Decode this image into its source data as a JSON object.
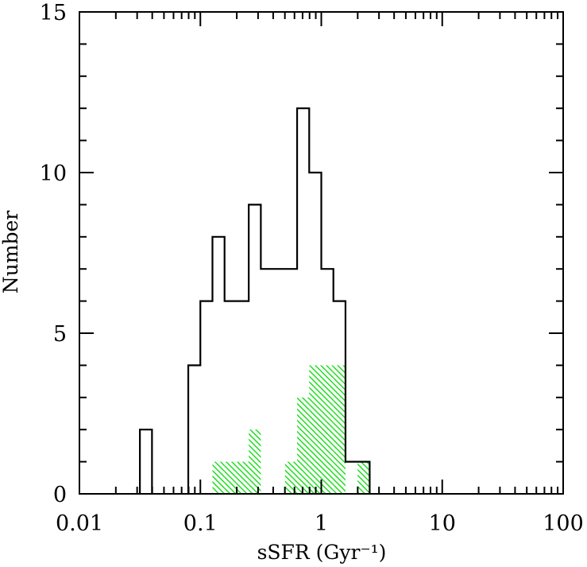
{
  "chart_data": {
    "type": "histogram",
    "xscale": "log",
    "xlabel": "sSFR (Gyr⁻¹)",
    "ylabel": "Number",
    "xlim": [
      0.01,
      100
    ],
    "ylim": [
      0,
      15
    ],
    "xticks": [
      {
        "value": 0.01,
        "label": "0.01"
      },
      {
        "value": 0.1,
        "label": "0.1"
      },
      {
        "value": 1,
        "label": "1"
      },
      {
        "value": 10,
        "label": "10"
      },
      {
        "value": 100,
        "label": "100"
      }
    ],
    "yticks": [
      {
        "value": 0,
        "label": "0"
      },
      {
        "value": 5,
        "label": "5"
      },
      {
        "value": 10,
        "label": "10"
      },
      {
        "value": 15,
        "label": "15"
      }
    ],
    "bin_edges_log10": [
      -1.6,
      -1.5,
      -1.4,
      -1.3,
      -1.2,
      -1.1,
      -1.0,
      -0.9,
      -0.8,
      -0.7,
      -0.6,
      -0.5,
      -0.4,
      -0.3,
      -0.2,
      -0.1,
      0.0,
      0.1,
      0.2,
      0.3,
      0.4,
      0.5,
      0.6,
      0.7,
      0.8,
      0.9,
      1.0,
      1.1,
      1.2,
      1.3,
      1.4,
      1.5,
      1.6
    ],
    "series": [
      {
        "style": "outline",
        "color": "#000000",
        "counts": [
          0,
          2,
          0,
          0,
          0,
          4,
          6,
          8,
          6,
          6,
          9,
          7,
          7,
          7,
          12,
          10,
          7,
          6,
          1,
          1,
          0,
          0,
          0,
          0,
          0,
          0,
          0,
          0,
          0,
          0,
          0,
          0
        ]
      },
      {
        "style": "hatched",
        "color": "#22dd22",
        "counts": [
          0,
          0,
          0,
          0,
          0,
          0,
          0,
          1,
          1,
          1,
          2,
          0,
          0,
          1,
          3,
          4,
          4,
          4,
          0,
          1,
          0,
          0,
          0,
          0,
          0,
          0,
          0,
          0,
          0,
          0,
          0,
          0
        ]
      }
    ],
    "grid": false,
    "legend": "none"
  }
}
